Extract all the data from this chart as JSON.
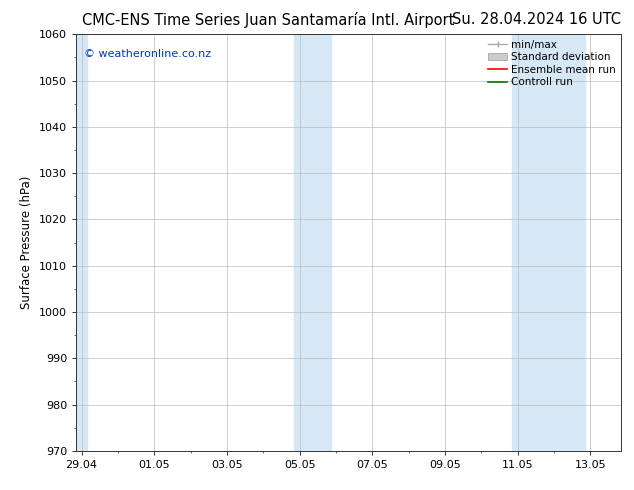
{
  "title_left": "CMC-ENS Time Series Juan Santamaría Intl. Airport",
  "title_right": "Su. 28.04.2024 16 UTC",
  "ylabel": "Surface Pressure (hPa)",
  "ylim": [
    970,
    1060
  ],
  "yticks": [
    970,
    980,
    990,
    1000,
    1010,
    1020,
    1030,
    1040,
    1050,
    1060
  ],
  "xtick_labels": [
    "29.04",
    "01.05",
    "03.05",
    "05.05",
    "07.05",
    "09.05",
    "11.05",
    "13.05"
  ],
  "xtick_positions": [
    0,
    2,
    4,
    6,
    8,
    10,
    12,
    14
  ],
  "xlim": [
    -0.15,
    14.85
  ],
  "shaded_bands": [
    {
      "x_start": -0.15,
      "x_end": 0.15
    },
    {
      "x_start": 5.85,
      "x_end": 6.85
    },
    {
      "x_start": 11.85,
      "x_end": 13.85
    }
  ],
  "band_color": "#d6e8f5",
  "watermark": "© weatheronline.co.nz",
  "watermark_color": "#0033cc",
  "background_color": "#ffffff",
  "plot_bg_color": "#ffffff",
  "grid_color": "#bbbbbb",
  "legend_entries": [
    "min/max",
    "Standard deviation",
    "Ensemble mean run",
    "Controll run"
  ],
  "legend_line_color_1": "#aaaaaa",
  "legend_fill_color_2": "#cccccc",
  "legend_line_color_3": "#ff0000",
  "legend_line_color_4": "#007700",
  "title_fontsize": 10.5,
  "axis_label_fontsize": 8.5,
  "tick_fontsize": 8,
  "legend_fontsize": 7.5
}
